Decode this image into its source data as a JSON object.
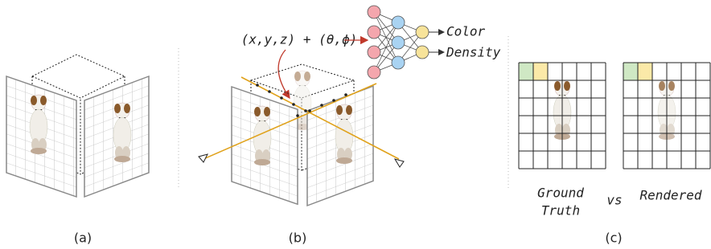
{
  "panels": [
    {
      "label": "(a)"
    },
    {
      "label": "(b)",
      "input": "(x,y,z) + (θ,ϕ)",
      "outputs": [
        "Color",
        "Density"
      ]
    },
    {
      "label": "(c)",
      "ground_truth": [
        "Ground",
        "Truth"
      ],
      "versus": "vs",
      "rendered": "Rendered"
    }
  ]
}
